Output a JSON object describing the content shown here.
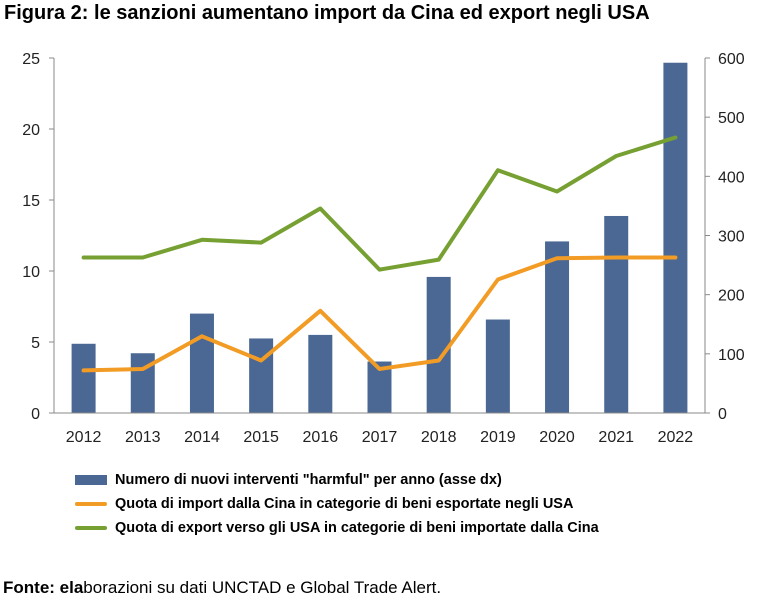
{
  "title": "Figura 2: le sanzioni aumentano import da Cina ed export negli USA",
  "source_label": "Fonte: ela",
  "source_text": "borazioni su dati UNCTAD e Global Trade Alert.",
  "colors": {
    "bars": "#4a6893",
    "import_line": "#f29c26",
    "export_line": "#77a033",
    "axis": "#8a8a8a"
  },
  "chart_data": {
    "type": "bar",
    "categories": [
      "2012",
      "2013",
      "2014",
      "2015",
      "2016",
      "2017",
      "2018",
      "2019",
      "2020",
      "2021",
      "2022"
    ],
    "ylim_left": [
      0,
      25
    ],
    "yticks_left": [
      "0",
      "5",
      "10",
      "15",
      "20",
      "25"
    ],
    "ylim_right": [
      0,
      600
    ],
    "yticks_right": [
      "0",
      "100",
      "200",
      "300",
      "400",
      "500",
      "600"
    ],
    "legend_position": "bottom",
    "grid": false,
    "series": [
      {
        "name": "Numero di nuovi interventi \"harmful\" per anno (asse dx)",
        "type": "bar",
        "axis": "right",
        "color": "#4a6893",
        "values": [
          117,
          101,
          168,
          126,
          132,
          87,
          230,
          158,
          290,
          333,
          592
        ]
      },
      {
        "name": "Quota di import dalla Cina in categorie di beni esportate negli USA",
        "type": "line",
        "axis": "left",
        "color": "#f29c26",
        "values": [
          3.0,
          3.1,
          5.4,
          3.7,
          7.2,
          3.1,
          3.7,
          9.4,
          10.9,
          10.95,
          10.95
        ]
      },
      {
        "name": "Quota di export verso gli USA in categorie di beni importate dalla Cina",
        "type": "line",
        "axis": "left",
        "color": "#77a033",
        "values": [
          10.95,
          10.95,
          12.2,
          12.0,
          14.4,
          10.1,
          10.8,
          17.1,
          15.6,
          18.1,
          19.4
        ]
      }
    ]
  }
}
